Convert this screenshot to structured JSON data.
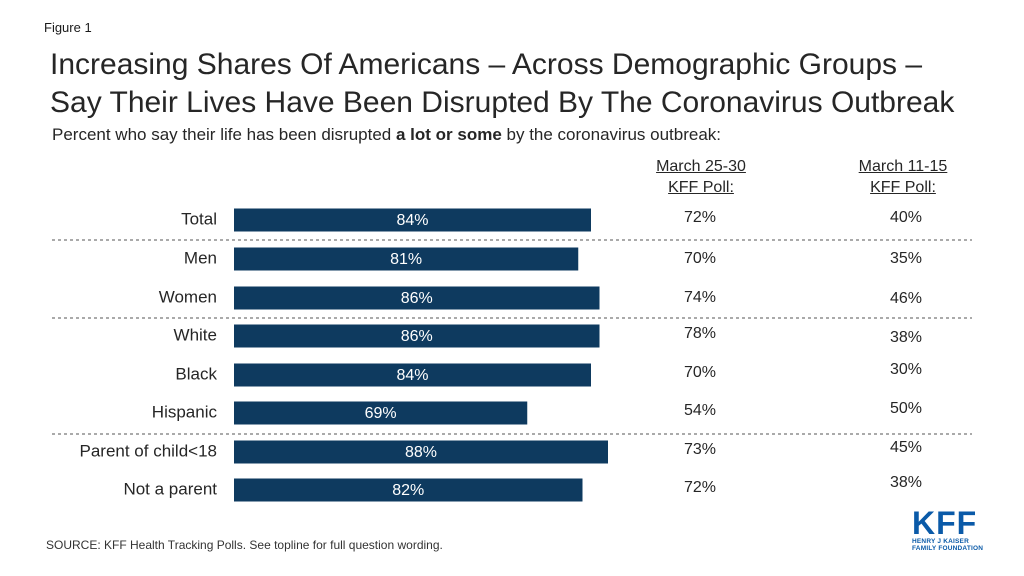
{
  "figure_label": "Figure 1",
  "title_line1": "Increasing Shares Of Americans – Across Demographic Groups –",
  "title_line2": "Say Their Lives Have Been Disrupted By The Coronavirus Outbreak",
  "subtitle_pre": "Percent who say their life has been disrupted ",
  "subtitle_bold": "a lot or some",
  "subtitle_post": " by the coronavirus outbreak:",
  "col_march25": {
    "line1": "March 25-30",
    "line2": "KFF Poll:"
  },
  "col_march11": {
    "line1": "March 11-15",
    "line2": "KFF Poll:"
  },
  "source": "SOURCE: KFF Health Tracking Polls. See topline for full question wording.",
  "logo": {
    "text": "KFF",
    "sub1": "HENRY J KAISER",
    "sub2": "FAMILY FOUNDATION"
  },
  "colors": {
    "bar": "#0e3a5f",
    "bar_label": "#ffffff",
    "logo": "#0a5aa8"
  },
  "chart_data": {
    "type": "bar",
    "orientation": "horizontal",
    "categories": [
      "Total",
      "Men",
      "Women",
      "White",
      "Black",
      "Hispanic",
      "Parent of child<18",
      "Not a parent"
    ],
    "values": [
      84,
      81,
      86,
      86,
      84,
      69,
      88,
      82
    ],
    "value_labels": [
      "84%",
      "81%",
      "86%",
      "86%",
      "84%",
      "69%",
      "88%",
      "82%"
    ],
    "xlim": [
      0,
      100
    ],
    "march_25_30": [
      "72%",
      "70%",
      "74%",
      "78%",
      "70%",
      "54%",
      "73%",
      "72%"
    ],
    "march_11_15": [
      "40%",
      "35%",
      "46%",
      "38%",
      "30%",
      "50%",
      "45%",
      "38%"
    ],
    "group_separators_after": [
      0,
      2,
      5
    ],
    "grid": false
  }
}
